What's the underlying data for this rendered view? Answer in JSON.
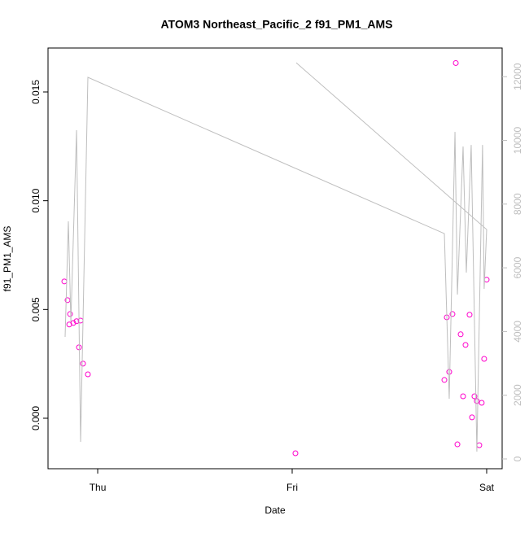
{
  "chart_data": {
    "type": "scatter",
    "title": "ATOM3 Northeast_Pacific_2 f91_PM1_AMS",
    "x_label": "Date",
    "y_label": "f91_PM1_AMS",
    "xlim": [
      -6.13,
      49.91
    ],
    "xticks": [
      {
        "value": 0,
        "label": "Thu"
      },
      {
        "value": 24,
        "label": "Fri"
      },
      {
        "value": 48,
        "label": "Sat"
      }
    ],
    "ylim": [
      -0.00232,
      0.01702
    ],
    "yticks": [
      {
        "value": 0,
        "label": "0.000"
      },
      {
        "value": 0.005,
        "label": "0.005"
      },
      {
        "value": 0.01,
        "label": "0.010"
      },
      {
        "value": 0.015,
        "label": "0.015"
      }
    ],
    "y2lim": [
      -307,
      12900
    ],
    "y2ticks": [
      0,
      2000,
      4000,
      6000,
      8000,
      10000,
      12000
    ],
    "series": [
      {
        "type": "scatter",
        "color": "#ff00cc",
        "x": [
          -4.12,
          -3.72,
          -3.51,
          -3.41,
          -3.01,
          -2.61,
          -2.31,
          -2.11,
          -1.81,
          -1.21,
          24.4,
          42.78,
          43.08,
          43.38,
          43.78,
          44.19,
          44.39,
          44.79,
          45.09,
          45.39,
          45.89,
          46.19,
          46.49,
          46.79,
          47.09,
          47.39,
          47.69,
          48.0
        ],
        "values": [
          0.00629,
          0.00543,
          0.00431,
          0.00479,
          0.00438,
          0.00446,
          0.00326,
          0.00449,
          0.00251,
          0.00202,
          -0.00161,
          0.00176,
          0.00464,
          0.00213,
          0.00479,
          0.01633,
          -0.0012,
          0.00386,
          0.00101,
          0.00337,
          0.00476,
          4e-05,
          0.00101,
          0.00079,
          -0.00124,
          0.00071,
          0.00273,
          0.00637
        ]
      },
      {
        "type": "line",
        "axis": "y2",
        "color": "#bebebe",
        "x": [
          -4.02,
          -3.62,
          -3.31,
          -2.61,
          -2.11,
          -1.21,
          42.78,
          43.38,
          44.09,
          44.39,
          45.09,
          45.49,
          46.09,
          46.79,
          47.49,
          47.69,
          48.0,
          24.5
        ],
        "values": [
          3831,
          7458,
          4317,
          10319,
          536,
          11979,
          7075,
          1890,
          10267,
          5159,
          9807,
          5849,
          9858,
          230,
          9858,
          5338,
          7202,
          12438
        ]
      }
    ]
  }
}
